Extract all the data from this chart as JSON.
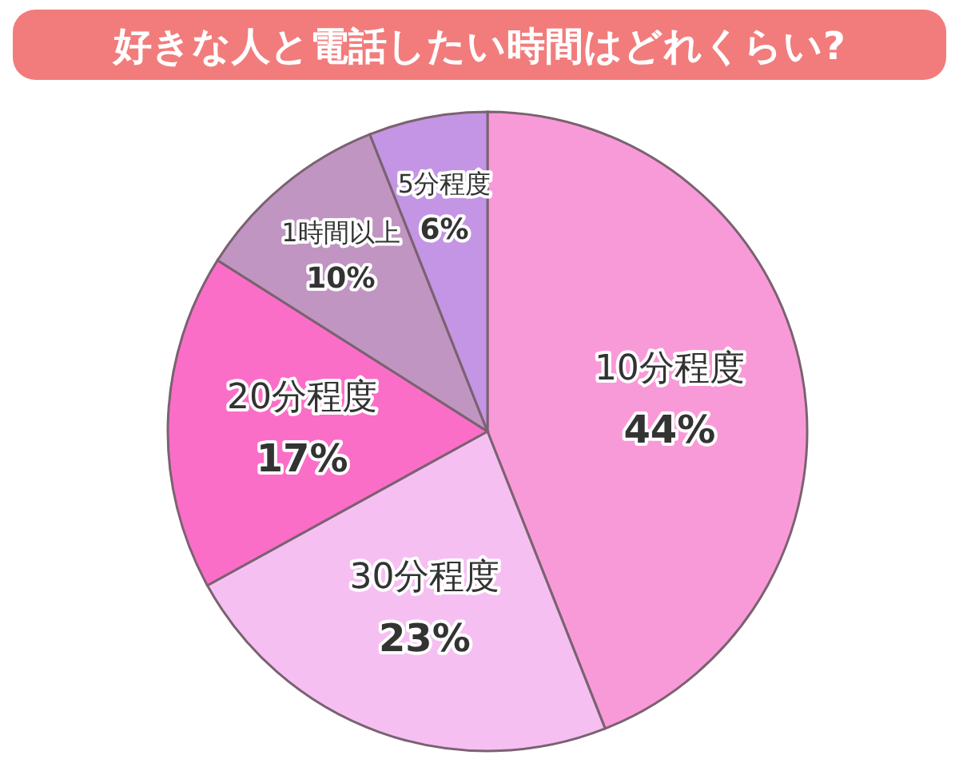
{
  "chart_data": {
    "type": "pie",
    "title": "好きな人と電話したい時間はどれくらい?",
    "categories": [
      "10分程度",
      "30分程度",
      "20分程度",
      "1時間以上",
      "5分程度"
    ],
    "values": [
      44,
      23,
      17,
      10,
      6
    ],
    "value_labels": [
      "44%",
      "23%",
      "17%",
      "10%",
      "6%"
    ],
    "colors": [
      "#f99ad8",
      "#f6bff2",
      "#fb6ec8",
      "#c195c2",
      "#c495e4"
    ]
  }
}
